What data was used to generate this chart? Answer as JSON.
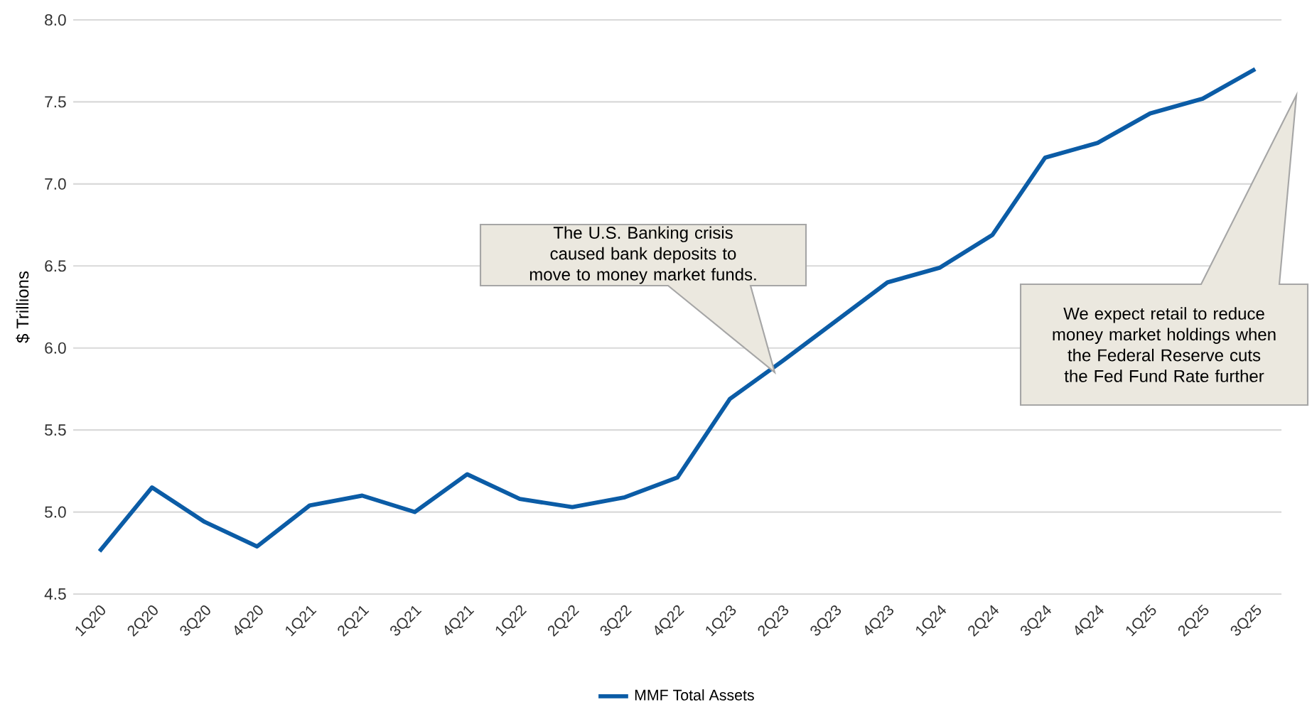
{
  "chart_data": {
    "type": "line",
    "ylabel": "$ Trillions",
    "categories": [
      "1Q20",
      "2Q20",
      "3Q20",
      "4Q20",
      "1Q21",
      "2Q21",
      "3Q21",
      "4Q21",
      "1Q22",
      "2Q22",
      "3Q22",
      "4Q22",
      "1Q23",
      "2Q23",
      "3Q23",
      "4Q23",
      "1Q24",
      "2Q24",
      "3Q24",
      "4Q24",
      "1Q25",
      "2Q25",
      "3Q25"
    ],
    "series": [
      {
        "name": "MMF Total Assets",
        "color": "#0b5ca6",
        "values": [
          4.76,
          5.15,
          4.94,
          4.79,
          5.04,
          5.1,
          5.0,
          5.23,
          5.08,
          5.03,
          5.09,
          5.21,
          5.69,
          5.92,
          6.16,
          6.4,
          6.49,
          6.69,
          7.16,
          7.25,
          7.43,
          7.52,
          7.7
        ]
      }
    ],
    "ylim": [
      4.5,
      8.0
    ],
    "yticks": [
      4.5,
      {
        "value": 5,
        "label": "5.0"
      },
      5.5,
      {
        "value": 6,
        "label": "6.0"
      },
      6.5,
      {
        "value": 7,
        "label": "7.0"
      },
      7.5,
      {
        "value": 8,
        "label": "8.0"
      }
    ],
    "grid": "y",
    "legend": "bottom",
    "marker": "none",
    "line_style": "solid",
    "annotations": [
      "The U.S. Banking crisis caused bank deposits to move to money market funds.",
      "We expect retail to reduce money market holdings when the Federal Reserve cuts the Fed Fund Rate further"
    ]
  }
}
